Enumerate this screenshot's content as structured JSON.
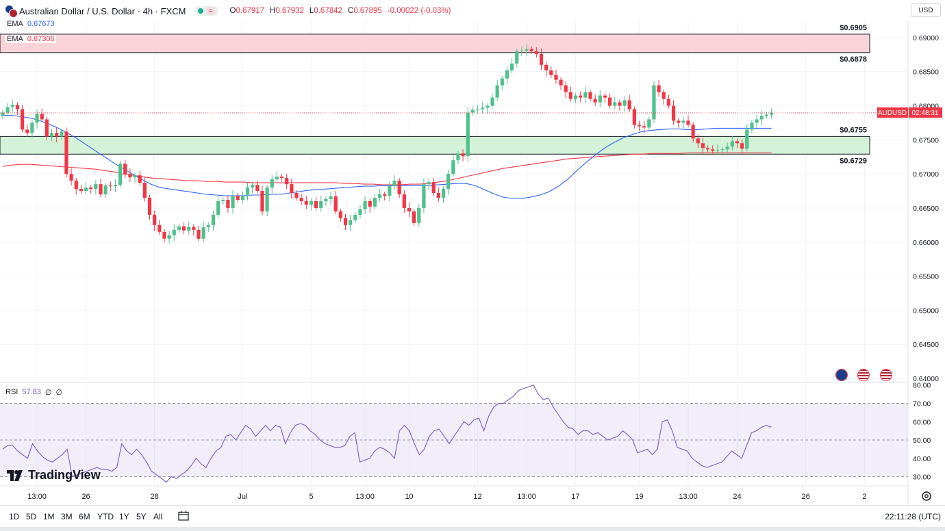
{
  "header": {
    "title": "Australian Dollar / U.S. Dollar · 4h · FXCM",
    "wave_icon": "≈",
    "ohlc": {
      "o_label": "O",
      "o": "0.67917",
      "h_label": "H",
      "h": "0.67932",
      "l_label": "L",
      "l": "0.67842",
      "c_label": "C",
      "c": "0.67895",
      "change": "-0.00022 (-0.03%)"
    }
  },
  "currency_button": "USD",
  "indicators": {
    "ema_fast": {
      "label": "EMA",
      "value": "0.67673",
      "color": "#2962ff"
    },
    "ema_slow": {
      "label": "EMA",
      "value": "0.67306",
      "color": "#f23645"
    },
    "rsi": {
      "label": "RSI",
      "value": "57.83",
      "extra1": "∅",
      "extra2": "∅",
      "color": "#7e57c2"
    }
  },
  "chart_data": [
    {
      "type": "candlestick",
      "symbol": "AUDUSD",
      "timeframe": "4h",
      "ylim": [
        0.6395,
        0.6925
      ],
      "y_ticks": [
        "0.69000",
        "0.68500",
        "0.68000",
        "0.67500",
        "0.67000",
        "0.66500",
        "0.66000",
        "0.65500",
        "0.65000",
        "0.64500",
        "0.64000"
      ],
      "x_ticks": [
        {
          "label": "13:00",
          "index": 7
        },
        {
          "label": "26",
          "index": 17
        },
        {
          "label": "28",
          "index": 31
        },
        {
          "label": "Jul",
          "index": 49
        },
        {
          "label": "5",
          "index": 63
        },
        {
          "label": "13:00",
          "index": 74
        },
        {
          "label": "10",
          "index": 83
        },
        {
          "label": "12",
          "index": 97
        },
        {
          "label": "13:00",
          "index": 107
        },
        {
          "label": "17",
          "index": 117
        },
        {
          "label": "19",
          "index": 130
        },
        {
          "label": "13:00",
          "index": 140
        },
        {
          "label": "24",
          "index": 150
        },
        {
          "label": "26",
          "index": 164
        },
        {
          "label": "2",
          "index": 176
        }
      ],
      "price_series": [
        0.679,
        0.6798,
        0.6801,
        0.6795,
        0.6765,
        0.676,
        0.6775,
        0.6788,
        0.678,
        0.6755,
        0.676,
        0.6755,
        0.6762,
        0.67,
        0.669,
        0.6678,
        0.6675,
        0.668,
        0.6678,
        0.6685,
        0.667,
        0.6683,
        0.6682,
        0.6684,
        0.6715,
        0.67,
        0.6695,
        0.6698,
        0.6687,
        0.6665,
        0.664,
        0.6625,
        0.6615,
        0.6605,
        0.661,
        0.6618,
        0.6623,
        0.6617,
        0.6622,
        0.6618,
        0.6605,
        0.6622,
        0.6625,
        0.664,
        0.666,
        0.6662,
        0.665,
        0.6668,
        0.6662,
        0.6668,
        0.668,
        0.6684,
        0.6675,
        0.6645,
        0.668,
        0.6692,
        0.6696,
        0.6694,
        0.6685,
        0.6672,
        0.6665,
        0.666,
        0.6655,
        0.666,
        0.665,
        0.666,
        0.6663,
        0.6667,
        0.6645,
        0.6635,
        0.6625,
        0.6632,
        0.664,
        0.6648,
        0.666,
        0.6652,
        0.6665,
        0.667,
        0.6668,
        0.6682,
        0.669,
        0.667,
        0.665,
        0.6645,
        0.6628,
        0.665,
        0.6685,
        0.6688,
        0.6672,
        0.6665,
        0.6678,
        0.67,
        0.672,
        0.673,
        0.6726,
        0.679,
        0.6794,
        0.6795,
        0.6797,
        0.68,
        0.6812,
        0.683,
        0.684,
        0.6852,
        0.6862,
        0.688,
        0.6881,
        0.6883,
        0.688,
        0.6876,
        0.686,
        0.6852,
        0.6845,
        0.6838,
        0.683,
        0.682,
        0.681,
        0.6815,
        0.6812,
        0.682,
        0.681,
        0.6805,
        0.6815,
        0.6812,
        0.68,
        0.6805,
        0.68,
        0.6808,
        0.6795,
        0.6772,
        0.677,
        0.6768,
        0.678,
        0.683,
        0.682,
        0.681,
        0.68,
        0.6778,
        0.6775,
        0.6778,
        0.6772,
        0.6752,
        0.6745,
        0.6738,
        0.6736,
        0.6734,
        0.6735,
        0.6736,
        0.674,
        0.6748,
        0.6745,
        0.6737,
        0.6765,
        0.6775,
        0.678,
        0.6785,
        0.6787,
        0.679
      ],
      "ema_fast_series": [
        0.6786,
        0.6786,
        0.6784,
        0.6782,
        0.6778,
        0.6773,
        0.6767,
        0.676,
        0.6752,
        0.6743,
        0.6734,
        0.6725,
        0.6716,
        0.6708,
        0.67,
        0.6692,
        0.6685,
        0.668,
        0.6678,
        0.6676,
        0.6674,
        0.6672,
        0.667,
        0.6669,
        0.6668,
        0.6668,
        0.6668,
        0.6669,
        0.6669,
        0.667,
        0.667,
        0.6672,
        0.6674,
        0.6676,
        0.6677,
        0.6678,
        0.6679,
        0.668,
        0.6681,
        0.6682,
        0.6682,
        0.6683,
        0.6683,
        0.6683,
        0.6683,
        0.6683,
        0.6683,
        0.6684,
        0.6685,
        0.6686,
        0.6686,
        0.6683,
        0.6677,
        0.6671,
        0.6666,
        0.6664,
        0.6664,
        0.6666,
        0.6669,
        0.6674,
        0.6682,
        0.6692,
        0.6705,
        0.6717,
        0.6728,
        0.6738,
        0.6746,
        0.6753,
        0.6758,
        0.6762,
        0.6764,
        0.6765,
        0.6766,
        0.6766,
        0.6765,
        0.6765,
        0.6766,
        0.6767,
        0.6767,
        0.6767,
        0.6767,
        0.6767,
        0.6767,
        0.6767
      ],
      "ema_slow_series": [
        0.6711,
        0.6713,
        0.6714,
        0.6714,
        0.6713,
        0.6712,
        0.6711,
        0.671,
        0.6709,
        0.6708,
        0.6707,
        0.6705,
        0.6703,
        0.67,
        0.6698,
        0.6696,
        0.6694,
        0.6693,
        0.6692,
        0.6691,
        0.669,
        0.669,
        0.6689,
        0.6689,
        0.6688,
        0.6688,
        0.6688,
        0.6687,
        0.6687,
        0.6687,
        0.6687,
        0.6687,
        0.6687,
        0.6687,
        0.6687,
        0.6687,
        0.6687,
        0.6686,
        0.6686,
        0.6685,
        0.6685,
        0.6684,
        0.6684,
        0.6684,
        0.6685,
        0.6685,
        0.6686,
        0.6688,
        0.669,
        0.6693,
        0.6696,
        0.6699,
        0.6702,
        0.6705,
        0.6708,
        0.671,
        0.6712,
        0.6714,
        0.6716,
        0.6718,
        0.672,
        0.6722,
        0.6723,
        0.6724,
        0.6725,
        0.6726,
        0.6727,
        0.6728,
        0.6729,
        0.6729,
        0.673,
        0.673,
        0.673,
        0.673,
        0.6731,
        0.6731,
        0.6731,
        0.6731,
        0.6731,
        0.6731,
        0.6731,
        0.6731,
        0.6731,
        0.6731
      ],
      "zones": [
        {
          "name": "resistance-zone",
          "top": 0.6905,
          "bottom": 0.6878,
          "fill": "#fad4d8",
          "top_label": "$0.6905",
          "bottom_label": "$0.6878"
        },
        {
          "name": "support-zone",
          "top": 0.6755,
          "bottom": 0.6729,
          "fill": "#d3f2d7",
          "top_label": "$0.6755",
          "bottom_label": "$0.6729"
        }
      ],
      "last_price_badge": {
        "symbol": "AUDUSD",
        "countdown": "02:48:31",
        "price": 0.67895
      }
    },
    {
      "type": "line",
      "name": "RSI",
      "ylim": [
        25,
        81
      ],
      "y_ticks": [
        "80.00",
        "70.00",
        "60.00",
        "50.00",
        "40.00",
        "30.00"
      ],
      "band": [
        30,
        70
      ],
      "midline": 50,
      "values": [
        45,
        47,
        47,
        44,
        42,
        40,
        48,
        44,
        41,
        39,
        38,
        40,
        42,
        45,
        30,
        31,
        32,
        33,
        34,
        35,
        34,
        34,
        33,
        35,
        48,
        44,
        42,
        45,
        42,
        38,
        33,
        31,
        29,
        27,
        30,
        29,
        31,
        33,
        36,
        40,
        37,
        35,
        40,
        44,
        46,
        52,
        53,
        50,
        54,
        58,
        56,
        52,
        55,
        58,
        55,
        58,
        57,
        48,
        54,
        58,
        59,
        58,
        55,
        53,
        50,
        48,
        47,
        46,
        46,
        47,
        52,
        54,
        38,
        39,
        40,
        44,
        46,
        45,
        43,
        40,
        55,
        58,
        55,
        48,
        42,
        45,
        52,
        55,
        56,
        52,
        48,
        52,
        56,
        60,
        58,
        61,
        62,
        55,
        63,
        68,
        70,
        70,
        72,
        74,
        77,
        78,
        79,
        80,
        75,
        72,
        73,
        68,
        64,
        60,
        57,
        56,
        53,
        55,
        55,
        53,
        54,
        52,
        50,
        51,
        52,
        55,
        53,
        50,
        43,
        44,
        45,
        42,
        45,
        60,
        61,
        55,
        46,
        45,
        44,
        40,
        38,
        36,
        35,
        36,
        37,
        38,
        41,
        44,
        42,
        40,
        47,
        54,
        55,
        57,
        58,
        57
      ]
    }
  ],
  "axis_badges": {
    "price_label": "AUDUSD",
    "countdown": "02:48:31"
  },
  "timeframes": [
    "1D",
    "5D",
    "1M",
    "3M",
    "6M",
    "YTD",
    "1Y",
    "5Y",
    "All"
  ],
  "clock": "22:11:28 (UTC)",
  "branding": "TradingView",
  "colors": {
    "up": "#26a69a",
    "up_body": "#4fc18b",
    "down": "#f23645",
    "grid": "#f0f3fa"
  }
}
